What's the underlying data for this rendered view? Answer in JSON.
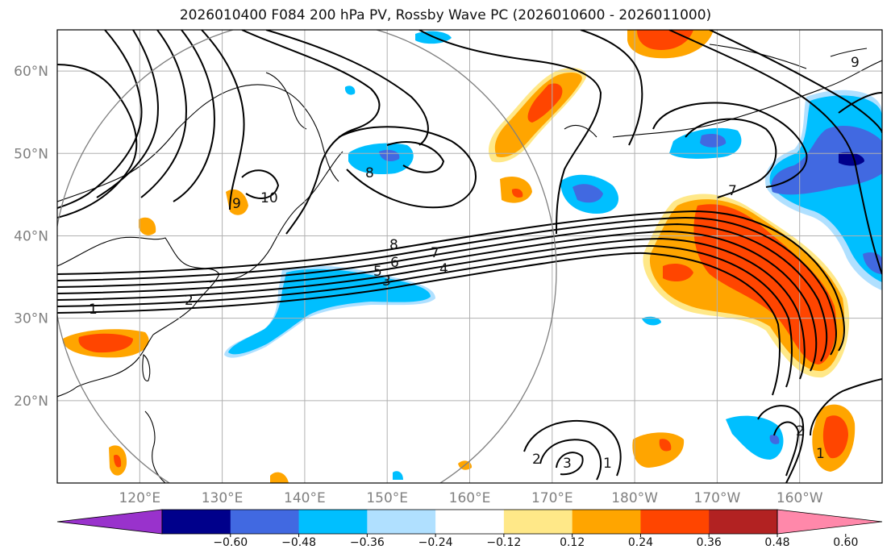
{
  "title": "2026010400 F084 200 hPa PV, Rossby Wave PC (2026010600 - 2026011000)",
  "map": {
    "lat_labels": [
      "60°N",
      "50°N",
      "40°N",
      "30°N",
      "20°N"
    ],
    "lat_values": [
      60,
      50,
      40,
      30,
      20
    ],
    "lon_labels": [
      "120°E",
      "130°E",
      "140°E",
      "150°E",
      "160°E",
      "170°E",
      "180°W",
      "170°W",
      "160°W"
    ],
    "lon_values": [
      120,
      130,
      140,
      150,
      160,
      170,
      180,
      190,
      200
    ],
    "lon_range": [
      110,
      210
    ],
    "lat_range": [
      10,
      65
    ],
    "grid": true
  },
  "colorbar": {
    "tick_labels": [
      "−0.60",
      "−0.48",
      "−0.36",
      "−0.24",
      "−0.12",
      "0.12",
      "0.24",
      "0.36",
      "0.48",
      "0.60"
    ],
    "colors": [
      "#9932cc",
      "#00008b",
      "#4169e1",
      "#00bfff",
      "#b0e0ff",
      "#ffffff",
      "#ffe888",
      "#ffa500",
      "#ff4500",
      "#b22222",
      "#ff88aa"
    ]
  },
  "shading_colors": {
    "strong_negative": "#4169e1",
    "negative": "#00bfff",
    "weak_negative": "#b0e0ff",
    "weak_positive": "#ffe888",
    "positive": "#ffa500",
    "strong_positive": "#ff4500",
    "deepest_negative": "#00008b"
  },
  "contour_labels": [
    "1",
    "2",
    "3",
    "4",
    "5",
    "6",
    "7",
    "8",
    "9",
    "10",
    "7",
    "8",
    "9",
    "2",
    "3",
    "1",
    "1",
    "2"
  ]
}
